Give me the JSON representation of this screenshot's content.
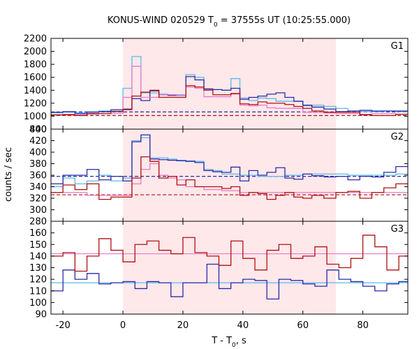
{
  "chart_data": {
    "type": "line",
    "title": {
      "prefix": "KONUS-WIND 020529 T",
      "sub": "0",
      "suffix": " = 37555s UT (10:25:55.000)"
    },
    "xlabel": {
      "prefix": "T - T",
      "sub": "0",
      "suffix": ", s"
    },
    "ylabel": "counts / sec",
    "xlim": [
      -24,
      95
    ],
    "x_ticks": [
      -20,
      0,
      20,
      40,
      60,
      80
    ],
    "highlight_interval": [
      0,
      71
    ],
    "highlight_color": "#ffe8ea",
    "panels": [
      {
        "label": "G1",
        "ylim": [
          800,
          2200
        ],
        "y_ticks": [
          800,
          1000,
          1200,
          1400,
          1600,
          1800,
          2000,
          2200
        ],
        "bin_edges": [
          -24,
          -20,
          -16,
          -12,
          -8,
          -4,
          0,
          3,
          6,
          9,
          12,
          15,
          18,
          21,
          24,
          27,
          30,
          33,
          36,
          39,
          42,
          45,
          48,
          51,
          54,
          57,
          60,
          63,
          67,
          71,
          75,
          79,
          83,
          87,
          91,
          95
        ],
        "series": [
          {
            "color": "#5bb8e8",
            "values": [
              1050,
              1060,
              1050,
              1070,
              1080,
              1080,
              1430,
              1920,
              1360,
              1360,
              1340,
              1330,
              1330,
              1640,
              1600,
              1420,
              1410,
              1400,
              1580,
              1280,
              1240,
              1280,
              1270,
              1230,
              1230,
              1230,
              1160,
              1170,
              1150,
              1120,
              1080,
              1070,
              1070,
              1080,
              1070
            ]
          },
          {
            "color": "#2a2aa8",
            "values": [
              1060,
              1070,
              1040,
              1060,
              1070,
              1100,
              1110,
              1270,
              1240,
              1390,
              1330,
              1320,
              1320,
              1610,
              1560,
              1420,
              1410,
              1400,
              1430,
              1260,
              1290,
              1310,
              1340,
              1360,
              1290,
              1230,
              1170,
              1140,
              1110,
              1070,
              1080,
              1090,
              1080,
              1080,
              1080
            ]
          },
          {
            "color": "#e878c8",
            "values": [
              1020,
              1030,
              1020,
              1030,
              1040,
              1040,
              1290,
              1770,
              1290,
              1290,
              1330,
              1330,
              1320,
              1450,
              1430,
              1300,
              1300,
              1300,
              1340,
              1170,
              1160,
              1170,
              1130,
              1120,
              1120,
              1120,
              1060,
              1060,
              1050,
              1040,
              1040,
              1030,
              1040,
              1040,
              1030
            ]
          },
          {
            "color": "#b01010",
            "values": [
              1020,
              1020,
              1010,
              1040,
              1040,
              1070,
              1100,
              1310,
              1370,
              1400,
              1290,
              1290,
              1290,
              1470,
              1450,
              1400,
              1330,
              1330,
              1350,
              1190,
              1180,
              1220,
              1200,
              1200,
              1180,
              1150,
              1120,
              1080,
              1060,
              1060,
              1060,
              1020,
              1010,
              1010,
              1030
            ]
          }
        ],
        "background_levels": [
          {
            "color": "#2a2aa8",
            "value": 1065
          },
          {
            "color": "#b01010",
            "value": 1010
          }
        ]
      },
      {
        "label": "G2",
        "ylim": [
          280,
          440
        ],
        "y_ticks": [
          280,
          300,
          320,
          340,
          360,
          380,
          400,
          420,
          440
        ],
        "bin_edges": [
          -24,
          -20,
          -16,
          -12,
          -8,
          -4,
          0,
          3,
          6,
          9,
          12,
          15,
          18,
          21,
          24,
          27,
          30,
          33,
          36,
          39,
          42,
          45,
          48,
          51,
          54,
          57,
          60,
          63,
          67,
          71,
          75,
          79,
          83,
          87,
          91,
          95
        ],
        "series": [
          {
            "color": "#5bb8e8",
            "values": [
              340,
              355,
              345,
              350,
              360,
              350,
              355,
              420,
              425,
              390,
              390,
              388,
              386,
              385,
              384,
              370,
              368,
              362,
              362,
              360,
              360,
              358,
              358,
              358,
              360,
              360,
              362,
              362,
              362,
              362,
              360,
              360,
              360,
              360,
              362
            ]
          },
          {
            "color": "#2a2aa8",
            "values": [
              345,
              360,
              360,
              370,
              352,
              358,
              350,
              418,
              430,
              388,
              387,
              386,
              385,
              384,
              382,
              368,
              366,
              365,
              374,
              350,
              368,
              360,
              365,
              373,
              355,
              353,
              362,
              359,
              357,
              358,
              352,
              358,
              357,
              365,
              375
            ]
          },
          {
            "color": "#e878c8",
            "values": [
              330,
              330,
              330,
              325,
              325,
              325,
              325,
              345,
              370,
              380,
              360,
              355,
              352,
              340,
              340,
              335,
              335,
              333,
              333,
              330,
              330,
              330,
              330,
              330,
              330,
              330,
              330,
              330,
              330,
              330,
              330,
              330,
              330,
              330,
              330
            ]
          },
          {
            "color": "#b01010",
            "values": [
              330,
              343,
              335,
              345,
              318,
              322,
              322,
              355,
              392,
              384,
              355,
              358,
              343,
              352,
              340,
              340,
              340,
              337,
              340,
              325,
              330,
              328,
              318,
              325,
              330,
              322,
              320,
              325,
              320,
              330,
              332,
              320,
              330,
              338,
              345
            ]
          }
        ],
        "background_levels": [
          {
            "color": "#2a2aa8",
            "value": 358
          },
          {
            "color": "#b01010",
            "value": 326
          }
        ]
      },
      {
        "label": "G3",
        "ylim": [
          90,
          170
        ],
        "y_ticks": [
          90,
          100,
          110,
          120,
          130,
          140,
          150,
          160
        ],
        "bin_edges": [
          -24,
          -20,
          -16,
          -12,
          -8,
          -4,
          0,
          4,
          8,
          12,
          16,
          20,
          24,
          28,
          32,
          36,
          40,
          44,
          48,
          52,
          56,
          60,
          64,
          68,
          72,
          76,
          80,
          84,
          88,
          92,
          95
        ],
        "series": [
          {
            "color": "#2a2aa8",
            "values": [
              110,
              128,
              120,
              125,
              116,
              117,
              118,
              112,
              118,
              117,
              105,
              117,
              117,
              133,
              112,
              117,
              120,
              119,
              103,
              120,
              119,
              116,
              114,
              128,
              120,
              118,
              114,
              110,
              116,
              118
            ]
          },
          {
            "color": "#b01010",
            "values": [
              140,
              143,
              127,
              140,
              155,
              145,
              135,
              150,
              153,
              145,
              142,
              156,
              143,
              140,
              132,
              153,
              138,
              128,
              145,
              150,
              138,
              140,
              148,
              133,
              130,
              138,
              158,
              148,
              128,
              140
            ]
          }
        ],
        "background_levels": [
          {
            "color": "#5bb8e8",
            "value": 117
          },
          {
            "color": "#e878c8",
            "value": 142
          }
        ]
      }
    ]
  }
}
